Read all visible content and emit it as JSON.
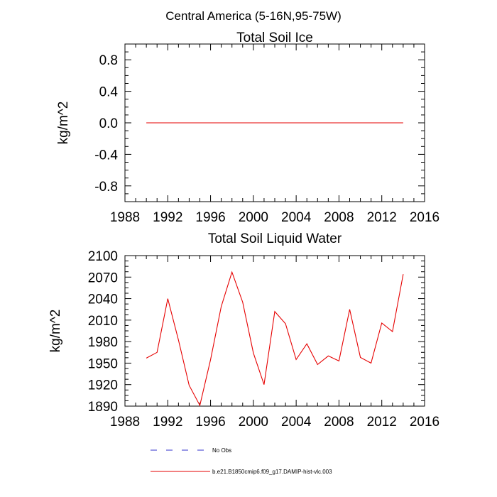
{
  "figure_title": "Central America (5-16N,95-75W)",
  "legend": [
    {
      "label": "No Obs",
      "color": "#3333cc",
      "dash": "dashed"
    },
    {
      "label": "b.e21.B1850cmip6.f09_g17.DAMIP-hist-vlc.003",
      "color": "#e60000",
      "dash": "solid"
    }
  ],
  "chart_data": [
    {
      "type": "line",
      "title": "Total Soil Ice",
      "xlabel": "",
      "ylabel": "kg/m^2",
      "xlim": [
        1988,
        2016
      ],
      "ylim": [
        -1.0,
        1.0
      ],
      "xticks": [
        1988,
        1992,
        1996,
        2000,
        2004,
        2008,
        2012,
        2016
      ],
      "xtick_labels": [
        "1988",
        "1992",
        "1996",
        "2000",
        "2004",
        "2008",
        "2012",
        "2016"
      ],
      "yticks": [
        -0.8,
        -0.4,
        0.0,
        0.4,
        0.8
      ],
      "ytick_labels": [
        "-0.8",
        "-0.4",
        "0.0",
        "0.4",
        "0.8"
      ],
      "series": [
        {
          "name": "b.e21.B1850cmip6.f09_g17.DAMIP-hist-vlc.003",
          "color": "#e60000",
          "x": [
            1990,
            1991,
            1992,
            1993,
            1994,
            1995,
            1996,
            1997,
            1998,
            1999,
            2000,
            2001,
            2002,
            2003,
            2004,
            2005,
            2006,
            2007,
            2008,
            2009,
            2010,
            2011,
            2012,
            2013,
            2014
          ],
          "y": [
            0,
            0,
            0,
            0,
            0,
            0,
            0,
            0,
            0,
            0,
            0,
            0,
            0,
            0,
            0,
            0,
            0,
            0,
            0,
            0,
            0,
            0,
            0,
            0,
            0
          ]
        }
      ]
    },
    {
      "type": "line",
      "title": "Total Soil Liquid Water",
      "xlabel": "",
      "ylabel": "kg/m^2",
      "xlim": [
        1988,
        2016
      ],
      "ylim": [
        1890,
        2100
      ],
      "xticks": [
        1988,
        1992,
        1996,
        2000,
        2004,
        2008,
        2012,
        2016
      ],
      "xtick_labels": [
        "1988",
        "1992",
        "1996",
        "2000",
        "2004",
        "2008",
        "2012",
        "2016"
      ],
      "yticks": [
        1890,
        1920,
        1950,
        1980,
        2010,
        2040,
        2070,
        2100
      ],
      "ytick_labels": [
        "1890",
        "1920",
        "1950",
        "1980",
        "2010",
        "2040",
        "2070",
        "2100"
      ],
      "series": [
        {
          "name": "b.e21.B1850cmip6.f09_g17.DAMIP-hist-vlc.003",
          "color": "#e60000",
          "x": [
            1990,
            1991,
            1992,
            1993,
            1994,
            1995,
            1996,
            1997,
            1998,
            1999,
            2000,
            2001,
            2002,
            2003,
            2004,
            2005,
            2006,
            2007,
            2008,
            2009,
            2010,
            2011,
            2012,
            2013,
            2014
          ],
          "y": [
            1957,
            1965,
            2040,
            1982,
            1919,
            1891,
            1955,
            2029,
            2077,
            2035,
            1964,
            1920,
            2022,
            2005,
            1955,
            1977,
            1948,
            1960,
            1953,
            2025,
            1958,
            1950,
            2006,
            1994,
            2074
          ]
        }
      ]
    }
  ]
}
